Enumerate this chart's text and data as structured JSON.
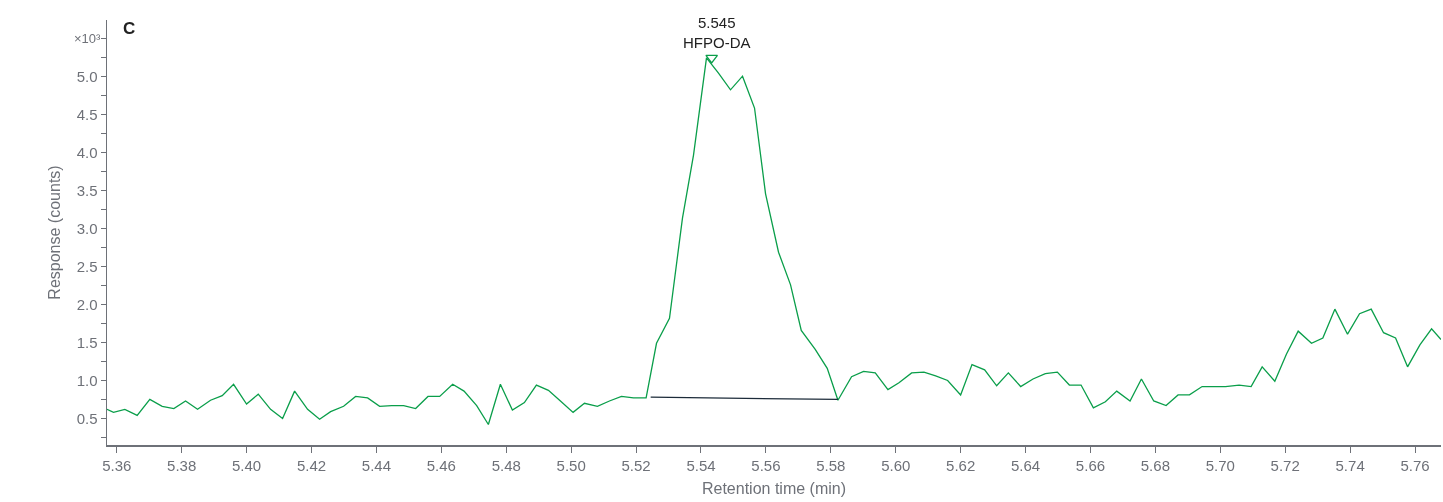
{
  "chart_data": {
    "type": "line",
    "title": "C",
    "xlabel": "Retention time (min)",
    "ylabel": "Response (counts)",
    "annotations": [
      "×10³",
      {
        "text": "5.545\nHFPO-DA",
        "x": 5.545,
        "y": 5.24
      }
    ],
    "xlim": [
      5.357,
      5.768
    ],
    "ylim": [
      0.15,
      5.75
    ],
    "xticks": [
      {
        "value": 5.36,
        "label": "5.36"
      },
      {
        "value": 5.38,
        "label": "5.38"
      },
      {
        "value": 5.4,
        "label": "5.40"
      },
      {
        "value": 5.42,
        "label": "5.42"
      },
      {
        "value": 5.44,
        "label": "5.44"
      },
      {
        "value": 5.46,
        "label": "5.46"
      },
      {
        "value": 5.48,
        "label": "5.48"
      },
      {
        "value": 5.5,
        "label": "5.50"
      },
      {
        "value": 5.52,
        "label": "5.52"
      },
      {
        "value": 5.54,
        "label": "5.54"
      },
      {
        "value": 5.56,
        "label": "5.56"
      },
      {
        "value": 5.58,
        "label": "5.58"
      },
      {
        "value": 5.6,
        "label": "5.60"
      },
      {
        "value": 5.62,
        "label": "5.62"
      },
      {
        "value": 5.64,
        "label": "5.64"
      },
      {
        "value": 5.66,
        "label": "5.66"
      },
      {
        "value": 5.68,
        "label": "5.68"
      },
      {
        "value": 5.7,
        "label": "5.70"
      },
      {
        "value": 5.72,
        "label": "5.72"
      },
      {
        "value": 5.74,
        "label": "5.74"
      },
      {
        "value": 5.76,
        "label": "5.76"
      }
    ],
    "yticks": [
      {
        "value": 0.25,
        "label": null
      },
      {
        "value": 0.5,
        "label": "0.5"
      },
      {
        "value": 0.75,
        "label": null
      },
      {
        "value": 1,
        "label": "1.0"
      },
      {
        "value": 1.25,
        "label": null
      },
      {
        "value": 1.5,
        "label": "1.5"
      },
      {
        "value": 1.75,
        "label": null
      },
      {
        "value": 2,
        "label": "2.0"
      },
      {
        "value": 2.25,
        "label": null
      },
      {
        "value": 2.5,
        "label": "2.5"
      },
      {
        "value": 2.75,
        "label": null
      },
      {
        "value": 3,
        "label": "3.0"
      },
      {
        "value": 3.25,
        "label": null
      },
      {
        "value": 3.5,
        "label": "3.5"
      },
      {
        "value": 3.75,
        "label": null
      },
      {
        "value": 4,
        "label": "4.0"
      },
      {
        "value": 4.25,
        "label": null
      },
      {
        "value": 4.5,
        "label": "4.5"
      },
      {
        "value": 4.75,
        "label": null
      },
      {
        "value": 5,
        "label": "5.0"
      },
      {
        "value": 5.25,
        "label": null
      },
      {
        "value": 5.5,
        "label": null
      }
    ],
    "grid": false,
    "marker": "none",
    "line_style": "solid",
    "series": [
      {
        "color": "#0a9e4a",
        "x": [
          5.357,
          5.359,
          5.3625,
          5.3663,
          5.3702,
          5.374,
          5.3776,
          5.3812,
          5.3849,
          5.3889,
          5.3925,
          5.396,
          5.4,
          5.4036,
          5.4074,
          5.4111,
          5.4148,
          5.4188,
          5.4225,
          5.4259,
          5.4299,
          5.4336,
          5.4373,
          5.441,
          5.4447,
          5.4484,
          5.4521,
          5.4559,
          5.4595,
          5.4635,
          5.467,
          5.4709,
          5.4745,
          5.4782,
          5.4819,
          5.4856,
          5.4893,
          5.493,
          5.4967,
          5.5006,
          5.5041,
          5.5081,
          5.5118,
          5.5155,
          5.5192,
          5.5231,
          5.5263,
          5.5303,
          5.5343,
          5.5377,
          5.5417,
          5.5454,
          5.5491,
          5.5528,
          5.5565,
          5.5599,
          5.5639,
          5.5676,
          5.5709,
          5.5752,
          5.5789,
          5.5822,
          5.5864,
          5.5901,
          5.5937,
          5.5976,
          5.601,
          5.6049,
          5.6087,
          5.6123,
          5.616,
          5.62,
          5.6235,
          5.6274,
          5.6311,
          5.6347,
          5.6385,
          5.6423,
          5.6461,
          5.6498,
          5.6535,
          5.6571,
          5.6609,
          5.6646,
          5.6681,
          5.6722,
          5.6757,
          5.6795,
          5.6833,
          5.687,
          5.6905,
          5.6944,
          5.6981,
          5.7016,
          5.7058,
          5.7095,
          5.7129,
          5.7168,
          5.7204,
          5.724,
          5.7281,
          5.7316,
          5.7353,
          5.7392,
          5.7429,
          5.7465,
          5.7503,
          5.754,
          5.7577,
          5.7615,
          5.7651,
          5.768
        ],
        "values": [
          0.62,
          0.58,
          0.62,
          0.54,
          0.75,
          0.66,
          0.63,
          0.73,
          0.62,
          0.74,
          0.8,
          0.95,
          0.69,
          0.82,
          0.62,
          0.5,
          0.86,
          0.62,
          0.49,
          0.59,
          0.66,
          0.79,
          0.77,
          0.66,
          0.67,
          0.67,
          0.63,
          0.79,
          0.79,
          0.95,
          0.86,
          0.67,
          0.42,
          0.95,
          0.61,
          0.71,
          0.94,
          0.87,
          0.73,
          0.58,
          0.7,
          0.66,
          0.73,
          0.79,
          0.77,
          0.77,
          1.49,
          1.82,
          3.14,
          3.97,
          5.25,
          5.05,
          4.83,
          5.01,
          4.59,
          3.46,
          2.69,
          2.26,
          1.66,
          1.41,
          1.16,
          0.74,
          1.05,
          1.12,
          1.1,
          0.88,
          0.97,
          1.1,
          1.11,
          1.06,
          1,
          0.81,
          1.21,
          1.14,
          0.93,
          1.1,
          0.92,
          1.02,
          1.09,
          1.11,
          0.94,
          0.94,
          0.64,
          0.72,
          0.86,
          0.73,
          1.02,
          0.73,
          0.67,
          0.81,
          0.81,
          0.92,
          0.92,
          0.92,
          0.94,
          0.92,
          1.18,
          0.99,
          1.35,
          1.65,
          1.49,
          1.56,
          1.94,
          1.61,
          1.88,
          1.94,
          1.63,
          1.56,
          1.18,
          1.47,
          1.68,
          1.54
        ]
      },
      {
        "type": "line",
        "color": "#1c2b39",
        "x": [
          5.5245,
          5.5822
        ],
        "values": [
          0.78,
          0.75
        ]
      },
      {
        "type": "scatter",
        "marker": "triangle",
        "color": "#0a9e4a",
        "x": [
          5.5433
        ],
        "values": [
          5.25
        ]
      }
    ]
  }
}
